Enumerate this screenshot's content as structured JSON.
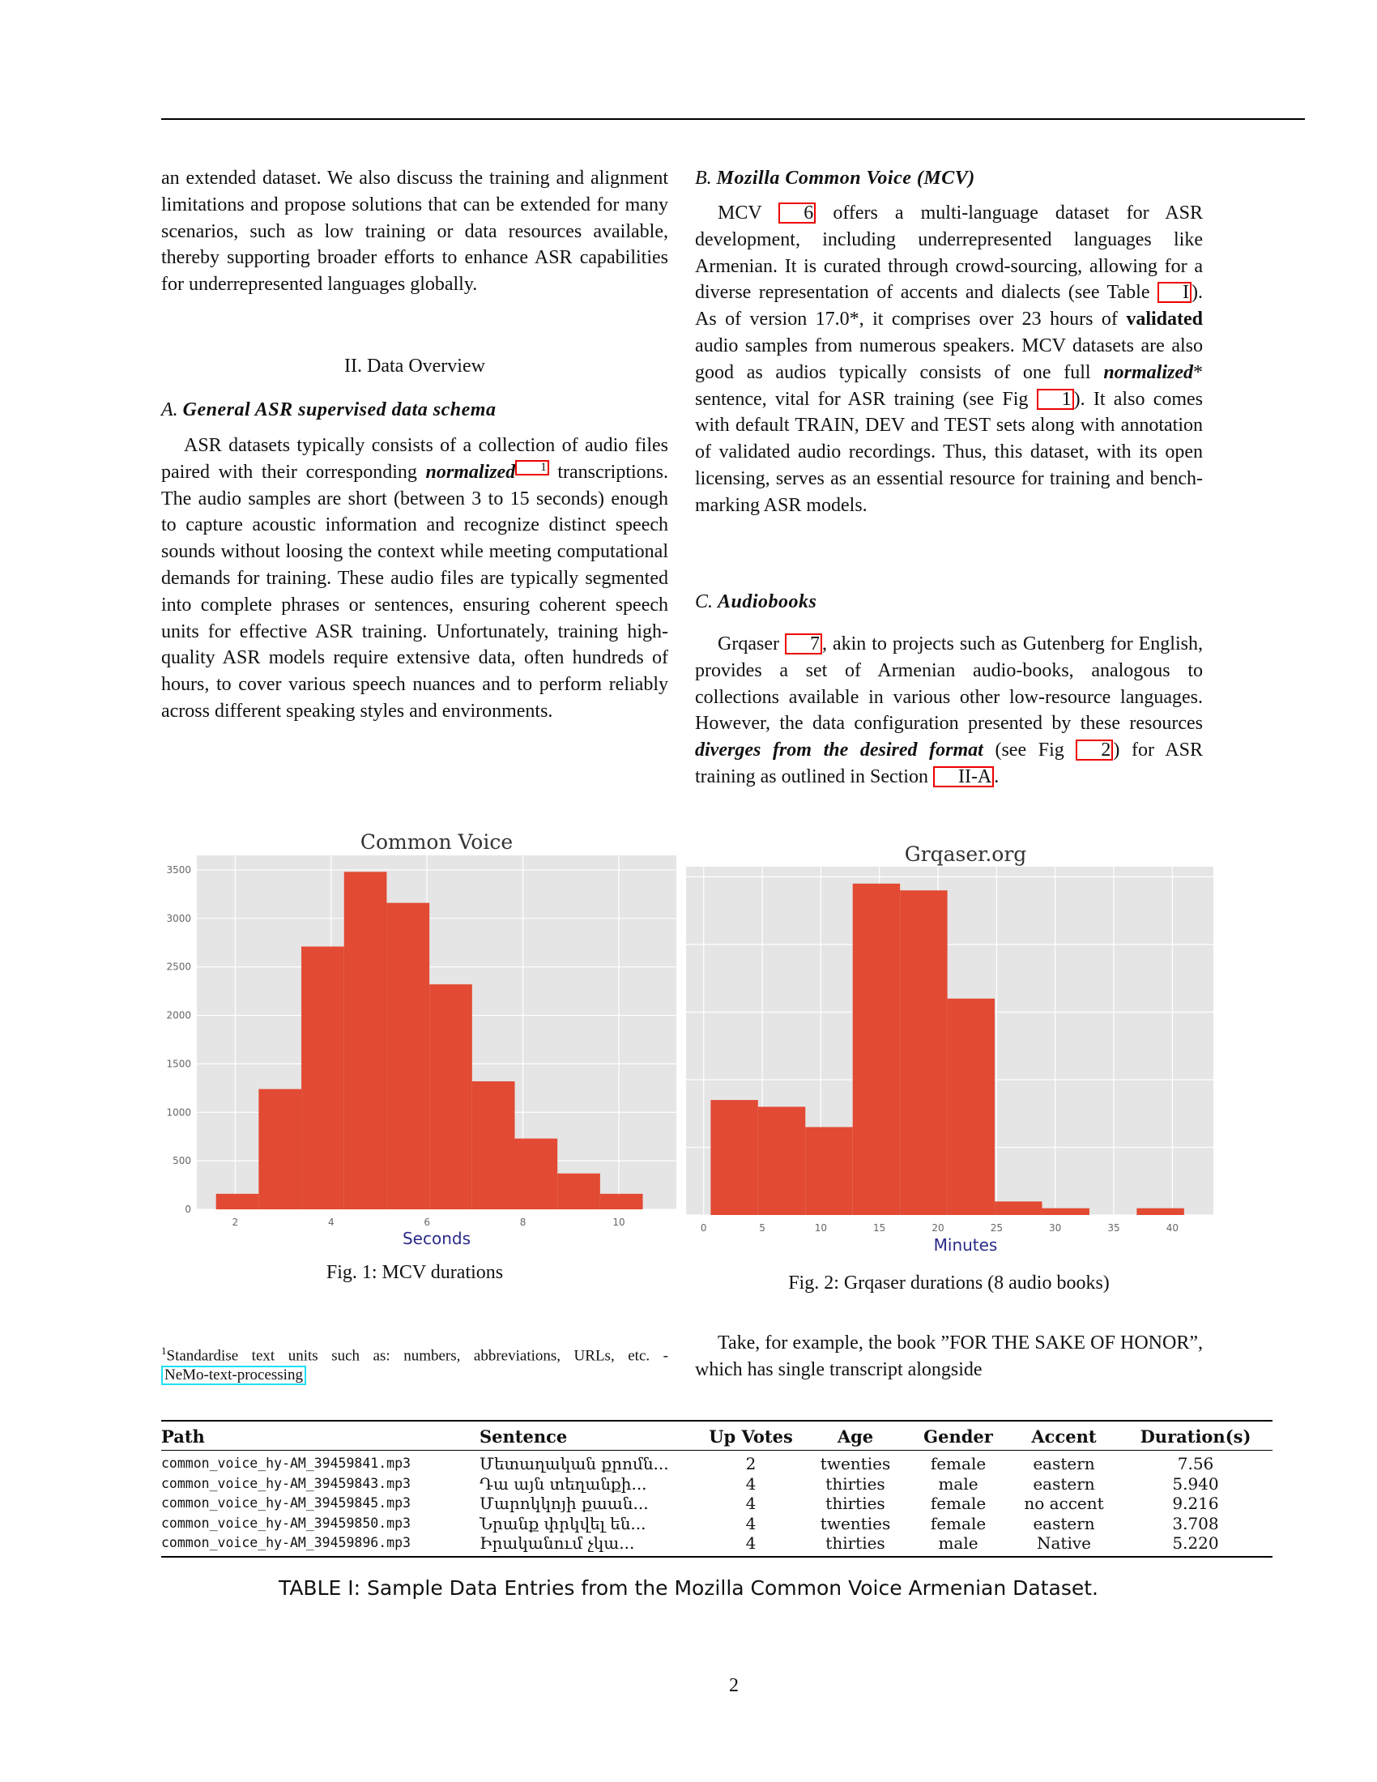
{
  "left": {
    "intro": "an extended dataset. We also discuss the training and alignment limitations and propose solutions that can be extended for many scenarios, such as low training or data resources available, thereby supporting broader efforts to enhance ASR capabilities for underrepresented languages globally.",
    "section_heading": "II. Data Overview",
    "sub_a_num": "A.",
    "sub_a_title": "General ASR supervised data schema",
    "para_a_1": "ASR datasets typically consists of a collection of audio files paired with their corresponding ",
    "para_a_em": "normalized",
    "para_a_fn": "1",
    "para_a_2": " transcriptions. The audio samples are short (between 3 to 15 seconds) enough to capture acoustic information and recognize distinct speech sounds without loosing the context while meeting computational demands for training. These audio files are typically segmented into complete phrases or sentences, ensuring coherent speech units for effective ASR training. Unfortunately, training high-quality ASR models require extensive data, often hundreds of hours, to cover various speech nuances and to perform reliably across different speaking styles and environments."
  },
  "right": {
    "sub_b_num": "B.",
    "sub_b_title": "Mozilla Common Voice (MCV)",
    "para_b_1": "MCV ",
    "cite_6": "6",
    "para_b_2": " offers a multi-language dataset for ASR development, including underrepresented languages like Armenian. It is curated through crowd-sourcing, allowing for a diverse representation of accents and dialects (see Table ",
    "ref_table": "I",
    "para_b_3": "). As of version 17.0*, it comprises over 23 hours of ",
    "para_b_bold": "validated",
    "para_b_4": " audio samples from numerous speakers. MCV datasets are also good as audios typically consists of one full ",
    "para_b_em": "normalized",
    "para_b_5": "* sentence, vital for ASR training (see Fig ",
    "ref_fig1": "1",
    "para_b_6": "). It also comes with default TRAIN, DEV and TEST sets along with annotation of validated audio recordings. Thus, this dataset, with its open licensing, serves as an essential resource for training and bench-marking ASR models.",
    "sub_c_num": "C.",
    "sub_c_title": "Audiobooks",
    "para_c_1": "Grqaser ",
    "cite_7": "7",
    "para_c_2": ", akin to projects such as Gutenberg for English, provides a set of Armenian audio-books, analogous to collections available in various other low-resource languages. However, the data configuration presented by these resources ",
    "para_c_em": "diverges from the desired format",
    "para_c_3": " (see Fig ",
    "ref_fig2": "2",
    "para_c_4": ") for ASR training as outlined in Section ",
    "ref_section": "II-A",
    "para_c_5": ".",
    "para_d": "Take, for example, the book ”FOR THE SAKE OF HONOR”, which has single transcript alongside"
  },
  "figures": {
    "fig1_caption": "Fig. 1: MCV durations",
    "fig2_caption": "Fig. 2: Grqaser durations (8 audio books)"
  },
  "footnote": {
    "mark": "1",
    "text": "Standardise text units such as: numbers, abbreviations, URLs, etc. - ",
    "link": "NeMo-text-processing"
  },
  "chart_data": [
    {
      "type": "bar",
      "title": "Common Voice",
      "xlabel": "Seconds",
      "ylabel": "",
      "bin_edges": [
        1.6,
        2.49,
        3.38,
        4.27,
        5.16,
        6.05,
        6.94,
        7.83,
        8.72,
        9.61,
        10.5
      ],
      "values": [
        160,
        1240,
        2710,
        3480,
        3160,
        2320,
        1320,
        730,
        370,
        160
      ],
      "xticks": [
        2,
        4,
        6,
        8,
        10
      ],
      "yticks": [
        0,
        500,
        1000,
        1500,
        2000,
        2500,
        3000,
        3500
      ],
      "xlim": [
        1.2,
        11.2
      ],
      "ylim": [
        0,
        3650
      ],
      "grid": true,
      "bar_color": "#e24a33",
      "background": "#e5e5e5"
    },
    {
      "type": "bar",
      "title": "Grqaser.org",
      "xlabel": "Minutes",
      "ylabel": "",
      "bin_edges": [
        0.6,
        4.64,
        8.68,
        12.72,
        16.76,
        20.8,
        24.84,
        28.88,
        32.92,
        36.96,
        41.0
      ],
      "values": [
        17,
        16,
        13,
        49,
        48,
        32,
        2,
        1,
        0,
        1
      ],
      "xticks": [
        0,
        5,
        10,
        15,
        20,
        25,
        30,
        35,
        40
      ],
      "yticks": [
        0,
        10,
        20,
        30,
        40,
        50
      ],
      "xlim": [
        -1.5,
        43.5
      ],
      "ylim": [
        0,
        51.5
      ],
      "grid": true,
      "bar_color": "#e24a33",
      "background": "#e5e5e5"
    }
  ],
  "table": {
    "headers": [
      "Path",
      "Sentence",
      "Up Votes",
      "Age",
      "Gender",
      "Accent",
      "Duration(s)"
    ],
    "rows": [
      [
        "common_voice_hy-AM_39459841.mp3",
        "Մետաղական քրոմն...",
        "2",
        "twenties",
        "female",
        "eastern",
        "7.56"
      ],
      [
        "common_voice_hy-AM_39459843.mp3",
        "Դա այն տեղանքի...",
        "4",
        "thirties",
        "male",
        "eastern",
        "5.940"
      ],
      [
        "common_voice_hy-AM_39459845.mp3",
        "Մարոկկոյի քաան...",
        "4",
        "thirties",
        "female",
        "no accent",
        "9.216"
      ],
      [
        "common_voice_hy-AM_39459850.mp3",
        "Նրանք փրկվել են...",
        "4",
        "twenties",
        "female",
        "eastern",
        "3.708"
      ],
      [
        "common_voice_hy-AM_39459896.mp3",
        "Իրականում չկա...",
        "4",
        "thirties",
        "male",
        "Native",
        "5.220"
      ]
    ],
    "caption": "TABLE I: Sample Data Entries from the Mozilla Common Voice Armenian Dataset."
  },
  "page_number": "2"
}
